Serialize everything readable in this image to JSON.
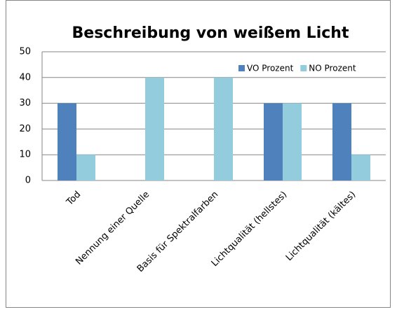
{
  "chart_data": {
    "type": "bar",
    "title": "Beschreibung von weißem Licht",
    "categories": [
      "Tod",
      "Nennung einer Quelle",
      "Basis für Spektralfarben",
      "Lichtqualität (hellstes)",
      "Lichtqualität (kältes)"
    ],
    "series": [
      {
        "name": "VO Prozent",
        "color": "#4f81bd",
        "values": [
          30,
          0,
          0,
          30,
          30
        ]
      },
      {
        "name": "NO Prozent",
        "color": "#93cddd",
        "values": [
          10,
          40,
          40,
          30,
          10
        ]
      }
    ],
    "ylim": [
      0,
      50
    ],
    "yticks": [
      0,
      10,
      20,
      30,
      40,
      50
    ],
    "grid": true,
    "legend": "top-right"
  }
}
